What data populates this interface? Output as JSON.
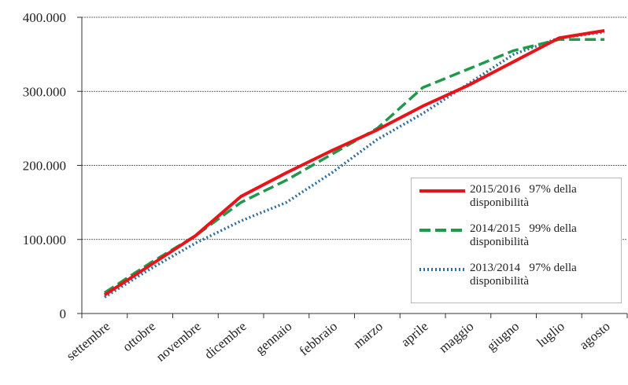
{
  "chart_data": {
    "type": "line",
    "categories": [
      "settembre",
      "ottobre",
      "novembre",
      "dicembre",
      "gennaio",
      "febbraio",
      "marzo",
      "aprile",
      "maggio",
      "giugno",
      "luglio",
      "agosto"
    ],
    "series": [
      {
        "name": "2015/2016   97% della disponibilità",
        "color": "#e8141b",
        "style": "solid",
        "values": [
          25000,
          65000,
          105000,
          158000,
          190000,
          220000,
          248000,
          280000,
          308000,
          340000,
          372000,
          382000
        ]
      },
      {
        "name": "2014/2015   99% della disponibilità",
        "color": "#1f9a4a",
        "style": "dashed",
        "values": [
          28000,
          68000,
          105000,
          150000,
          180000,
          215000,
          250000,
          305000,
          330000,
          355000,
          370000,
          370000
        ]
      },
      {
        "name": "2013/2014   97% della disponibilità",
        "color": "#2e6fa0",
        "style": "dotted",
        "values": [
          22000,
          60000,
          95000,
          125000,
          150000,
          190000,
          235000,
          270000,
          310000,
          350000,
          372000,
          380000
        ]
      }
    ],
    "ylim": [
      0,
      400000
    ],
    "yticks": [
      0,
      {
        "value": 100000,
        "label": "100.000"
      },
      {
        "value": 200000,
        "label": "200.000"
      },
      {
        "value": 300000,
        "label": "300.000"
      },
      {
        "value": 400000,
        "label": "400.000"
      }
    ],
    "grid": true,
    "legend": "lower right"
  }
}
